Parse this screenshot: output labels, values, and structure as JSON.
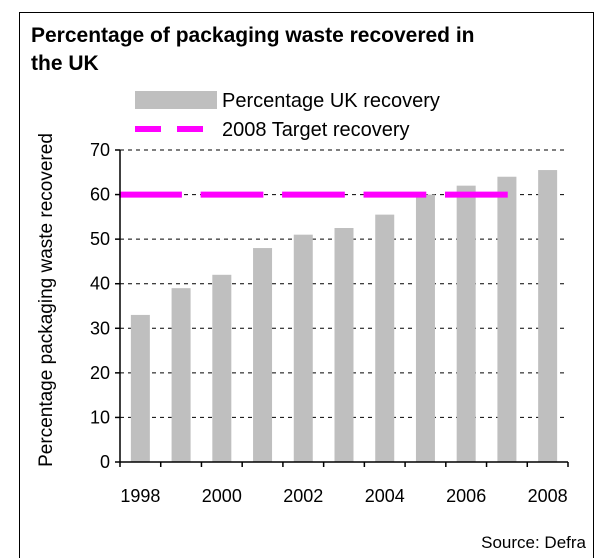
{
  "chart_data": {
    "type": "bar",
    "title_line1": "Percentage of packaging waste recovered in",
    "title_line2": "the UK",
    "ylabel": "Percentage packaging waste recovered",
    "xlabel": "",
    "ylim": [
      0,
      70
    ],
    "yticks": [
      0,
      10,
      20,
      30,
      40,
      50,
      60,
      70
    ],
    "categories": [
      "1998",
      "1999",
      "2000",
      "2001",
      "2002",
      "2003",
      "2004",
      "2005",
      "2006",
      "2007",
      "2008"
    ],
    "xtick_labels": [
      "1998",
      "2000",
      "2002",
      "2004",
      "2006",
      "2008"
    ],
    "series": [
      {
        "name": "Percentage UK recovery",
        "values": [
          33,
          39,
          42,
          48,
          51,
          52.5,
          55.5,
          60,
          62,
          64,
          65.5
        ],
        "color": "#bfbfbf"
      }
    ],
    "target": {
      "name": "2008 Target recovery",
      "value": 60,
      "color": "#ff00ff"
    },
    "grid": true,
    "legend": "top",
    "source": "Source: Defra"
  }
}
